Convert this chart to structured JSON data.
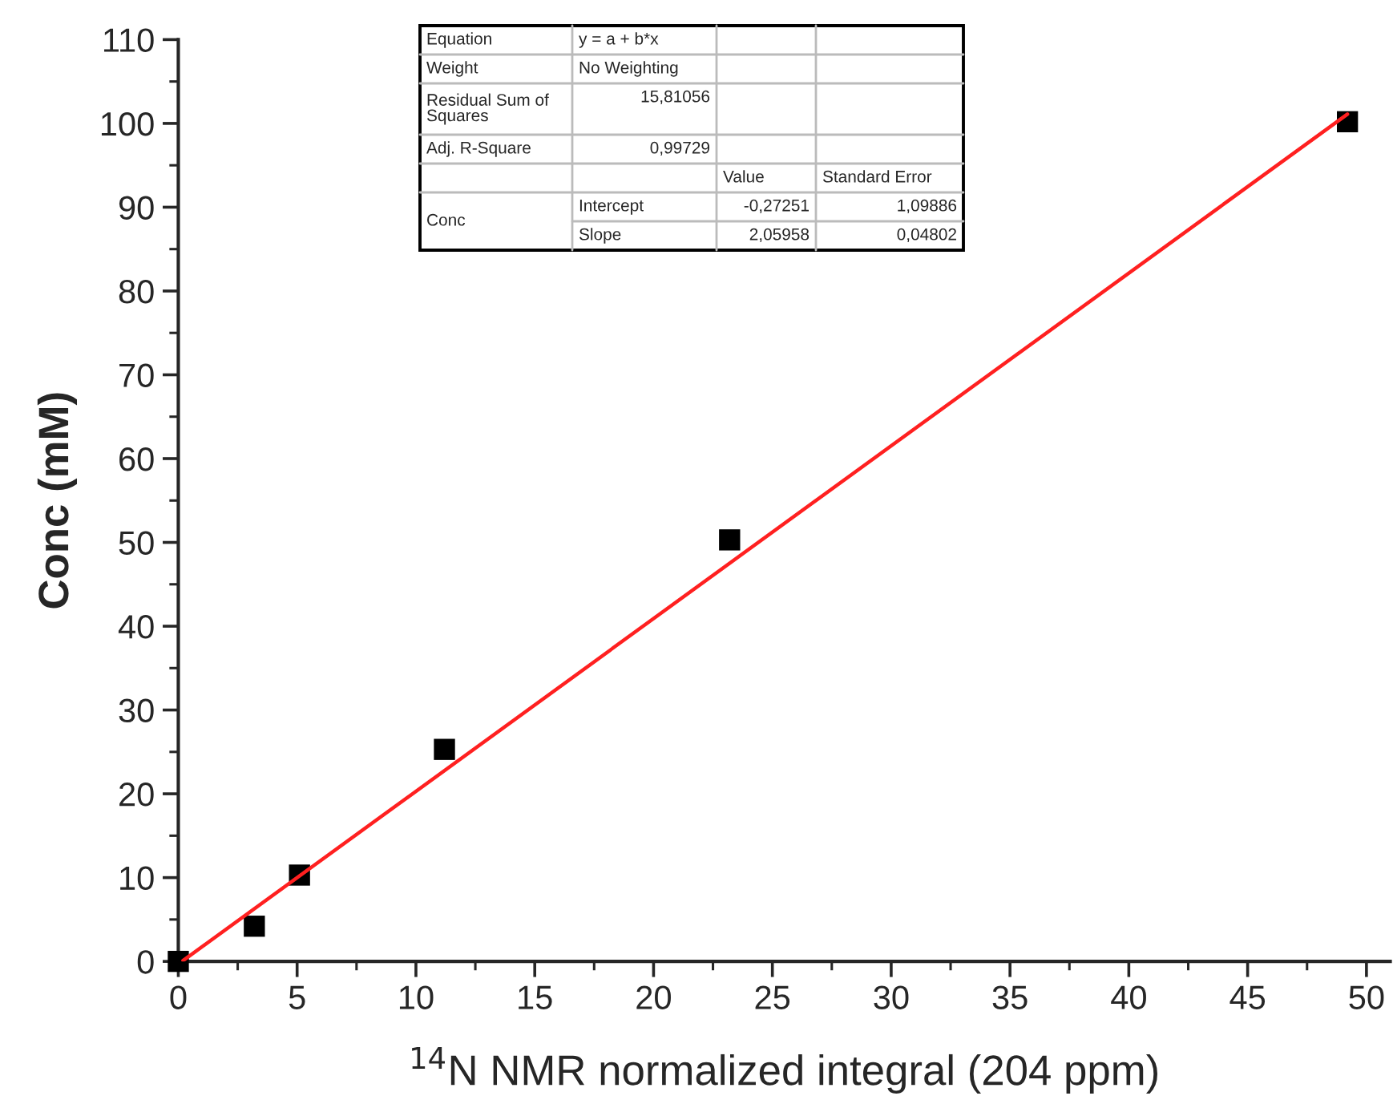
{
  "chart_data": {
    "type": "scatter",
    "xlabel": "$^{14}$N NMR normalized integral (204 ppm)",
    "ylabel": "Conc (mM)",
    "xlim": [
      0,
      51
    ],
    "xticks": [
      0,
      5,
      10,
      15,
      20,
      25,
      30,
      35,
      40,
      45,
      50
    ],
    "ylim": [
      0,
      110
    ],
    "yticks": [
      0,
      10,
      20,
      30,
      40,
      50,
      60,
      70,
      80,
      90,
      100,
      110
    ],
    "grid": false,
    "legend": false,
    "series": [
      {
        "marker": "square",
        "color": "#000000",
        "x": [
          0,
          3.2,
          5.1,
          11.2,
          23.2,
          49.2
        ],
        "values": [
          0,
          4.2,
          10.3,
          25.3,
          50.3,
          100.2
        ]
      },
      {
        "type": "line",
        "marker": "none",
        "color": "#ff2020",
        "x": [
          0.2,
          49.2
        ],
        "values": [
          0.1,
          101.1
        ]
      }
    ],
    "annotations": [
      "Equation",
      "y = a + b*x",
      "Weight",
      "No Weighting",
      "Residual Sum of\nSquares",
      "15,81056",
      "Adj. R-Square",
      "0,99729",
      "Value",
      "Standard Error",
      "Conc",
      "Intercept",
      "-0,27251",
      "1,09886",
      "Slope",
      "2,05958",
      "0,04802"
    ]
  }
}
